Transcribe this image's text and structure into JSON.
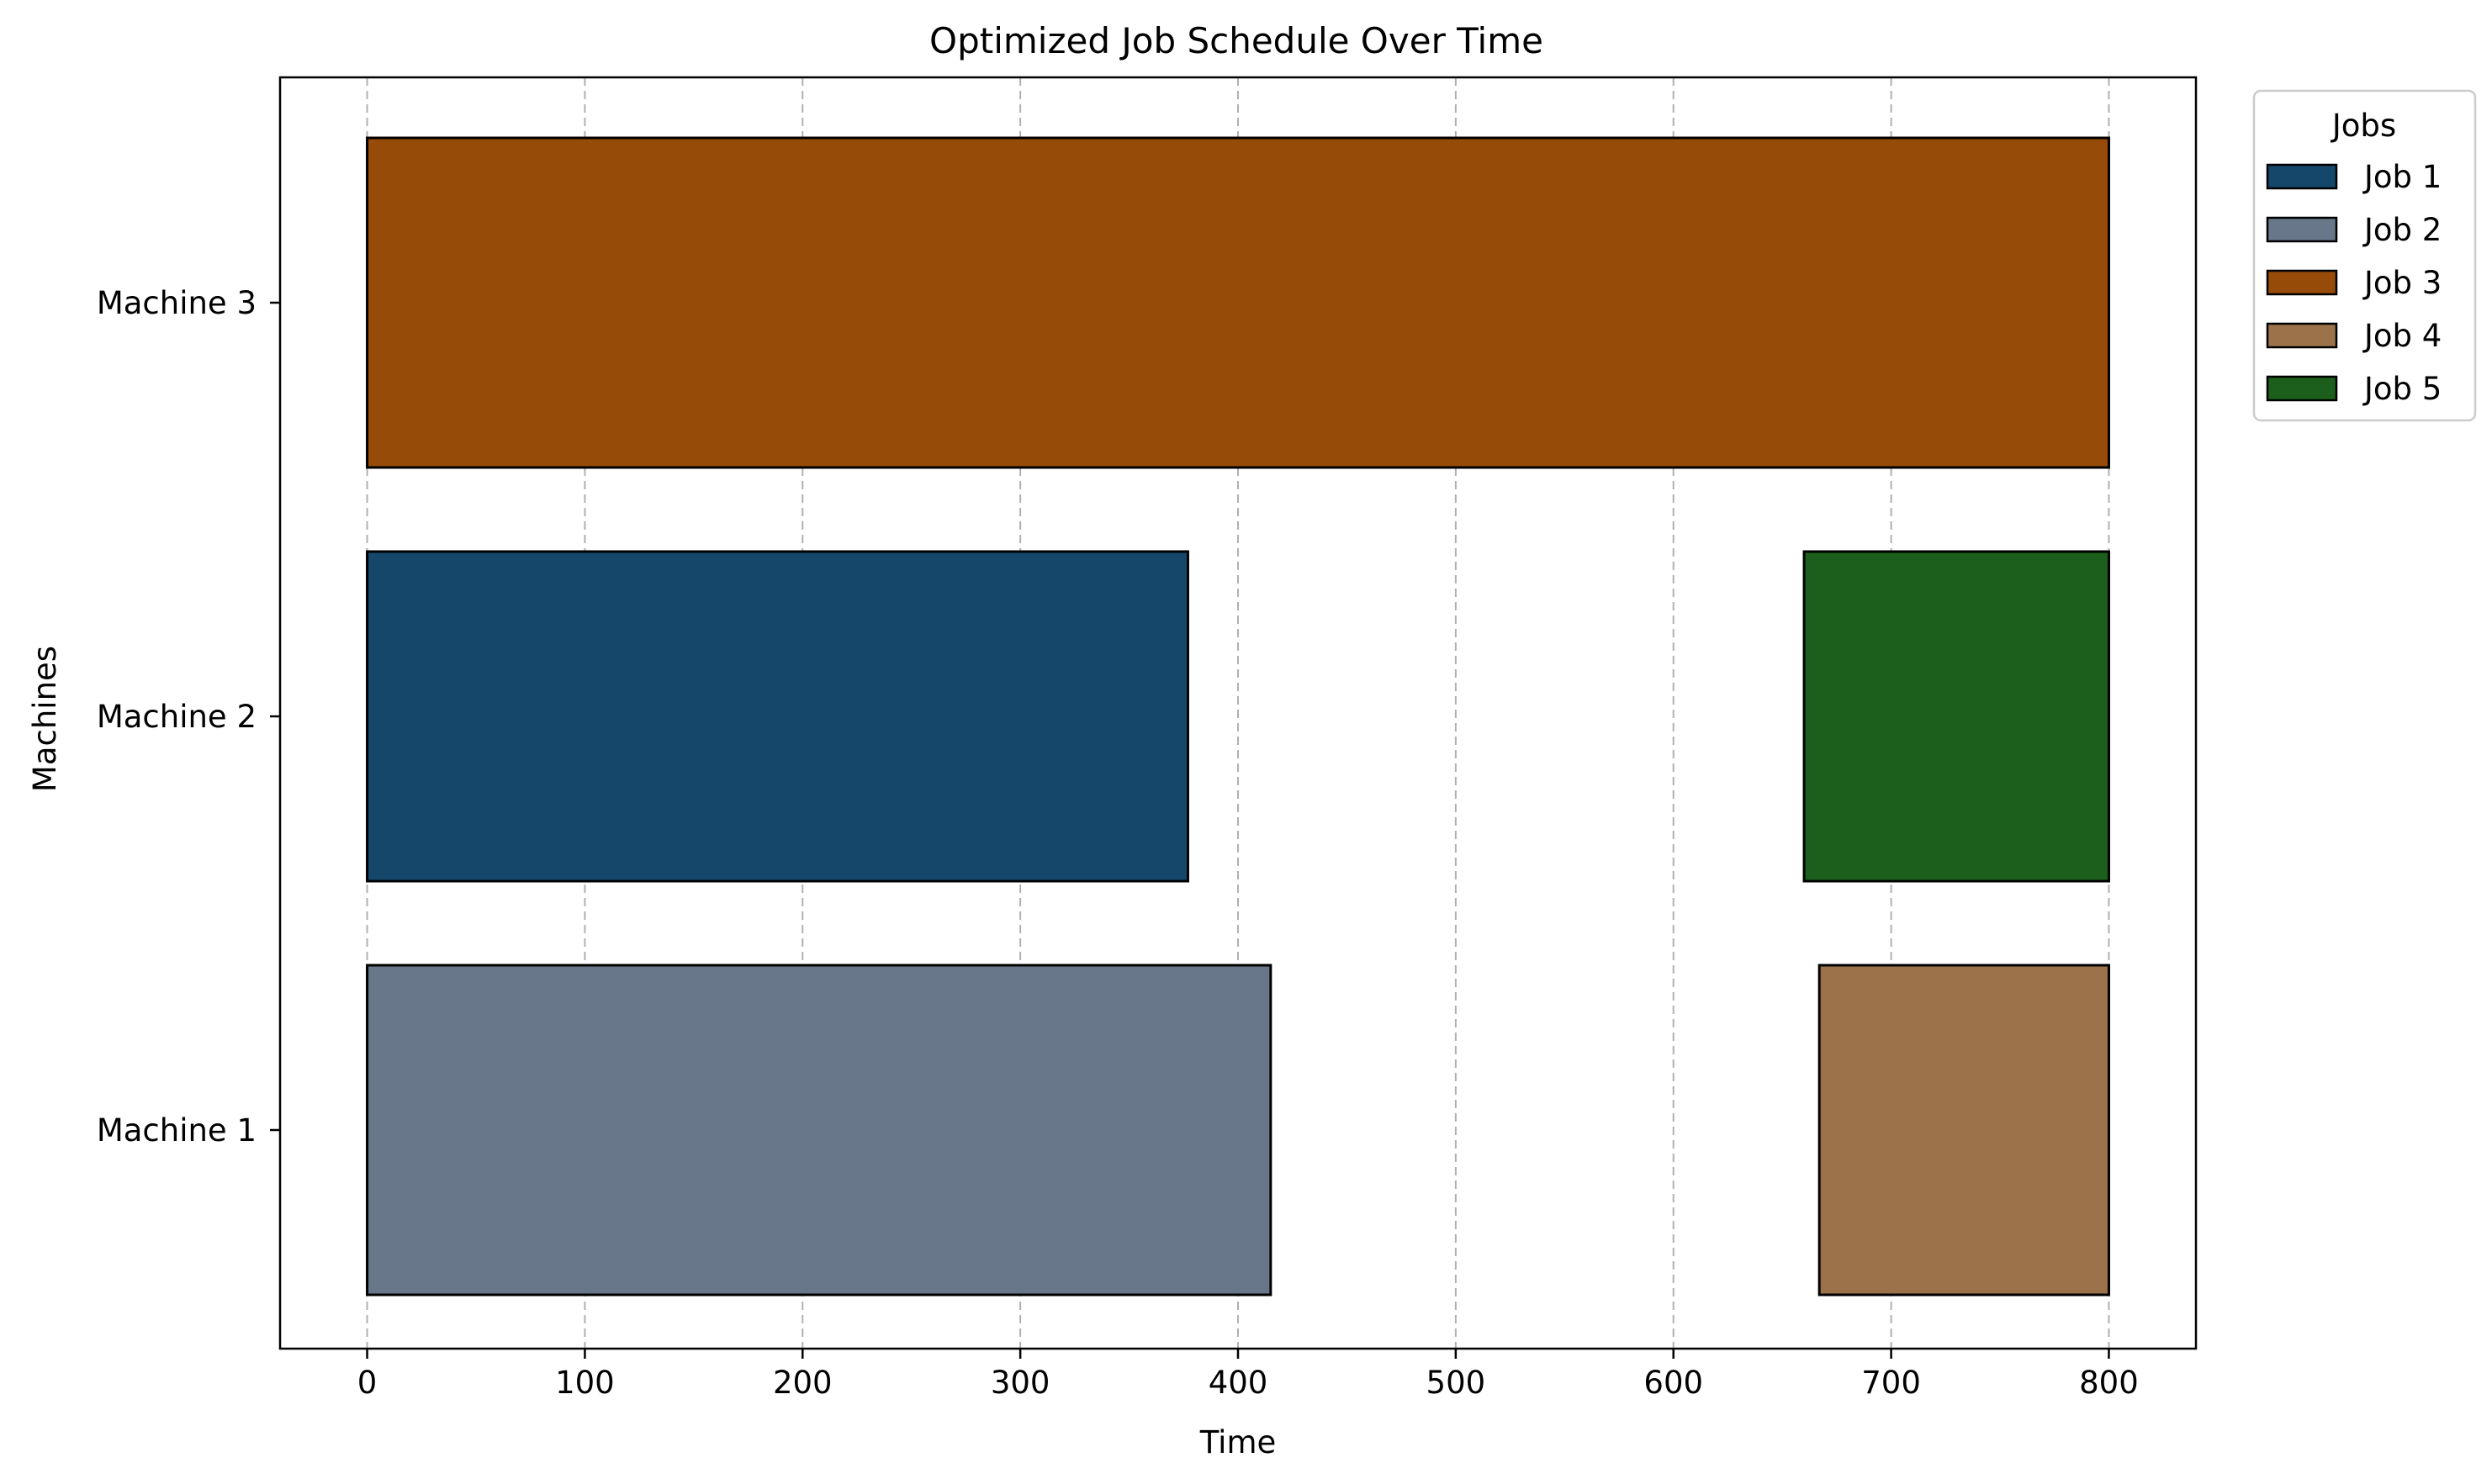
{
  "chart_data": {
    "type": "gantt",
    "title": "Optimized Job Schedule Over Time",
    "xlabel": "Time",
    "ylabel": "Machines",
    "xlim": [
      -40,
      840
    ],
    "xticks": [
      0,
      100,
      200,
      300,
      400,
      500,
      600,
      700,
      800
    ],
    "machines": [
      "Machine 1",
      "Machine 2",
      "Machine 3"
    ],
    "grid": "x-dashed",
    "legend": {
      "title": "Jobs",
      "placement": "outside-top-right",
      "entries": [
        {
          "label": "Job 1",
          "color": "#15476b"
        },
        {
          "label": "Job 2",
          "color": "#687789"
        },
        {
          "label": "Job 3",
          "color": "#974b09"
        },
        {
          "label": "Job 4",
          "color": "#9b7249"
        },
        {
          "label": "Job 5",
          "color": "#1c5f1c"
        }
      ]
    },
    "tasks": [
      {
        "job": "Job 3",
        "machine": "Machine 3",
        "start": 0,
        "end": 800
      },
      {
        "job": "Job 1",
        "machine": "Machine 2",
        "start": 0,
        "end": 377
      },
      {
        "job": "Job 5",
        "machine": "Machine 2",
        "start": 660,
        "end": 800
      },
      {
        "job": "Job 2",
        "machine": "Machine 1",
        "start": 0,
        "end": 415
      },
      {
        "job": "Job 4",
        "machine": "Machine 1",
        "start": 667,
        "end": 800
      }
    ]
  }
}
